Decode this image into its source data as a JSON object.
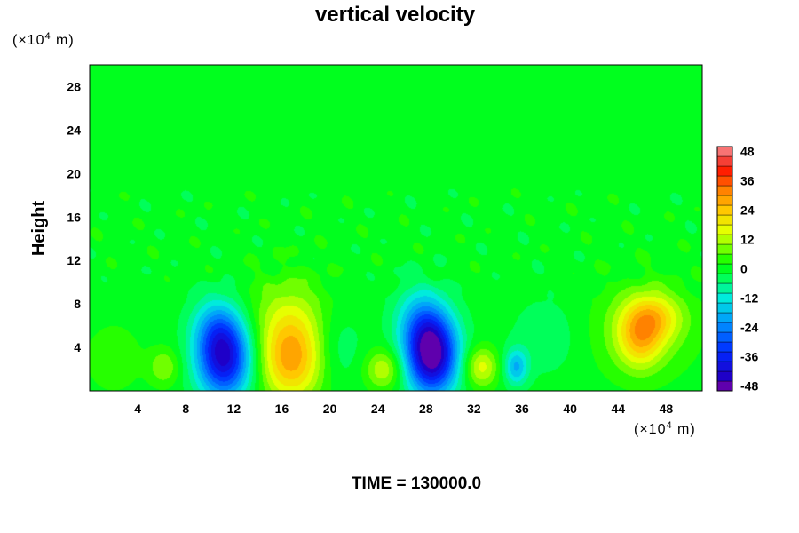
{
  "chart_data": {
    "type": "heatmap",
    "title": "vertical velocity",
    "xlabel": "",
    "ylabel": "Height",
    "x_unit": {
      "prefix": "(×10",
      "exp": "4",
      "suffix": " m)"
    },
    "y_unit": {
      "prefix": "(×10",
      "exp": "4",
      "suffix": " m)"
    },
    "xlim": [
      0,
      51
    ],
    "ylim": [
      0,
      30
    ],
    "x_ticks": [
      4,
      8,
      12,
      16,
      20,
      24,
      28,
      32,
      36,
      40,
      44,
      48
    ],
    "y_ticks": [
      4,
      8,
      12,
      16,
      20,
      24,
      28
    ],
    "colorbar": {
      "range": [
        -50,
        50
      ],
      "ticks": [
        48,
        36,
        24,
        12,
        0,
        -12,
        -24,
        -36,
        -48
      ],
      "levels": 25
    },
    "features": [
      {
        "x": 11.2,
        "y": 3.0,
        "value": -42,
        "sx": 1.6,
        "sy": 2.6
      },
      {
        "x": 10.5,
        "y": 6.0,
        "value": -12,
        "sx": 1.4,
        "sy": 2.0
      },
      {
        "x": 16.8,
        "y": 3.0,
        "value": 28,
        "sx": 1.9,
        "sy": 2.8
      },
      {
        "x": 16.5,
        "y": 7.5,
        "value": 8,
        "sx": 2.5,
        "sy": 2.5
      },
      {
        "x": 28.5,
        "y": 3.3,
        "value": -50,
        "sx": 1.5,
        "sy": 2.6
      },
      {
        "x": 27.5,
        "y": 6.5,
        "value": -14,
        "sx": 1.5,
        "sy": 2.2
      },
      {
        "x": 24.5,
        "y": 2.0,
        "value": 14,
        "sx": 1.1,
        "sy": 1.3
      },
      {
        "x": 32.6,
        "y": 2.2,
        "value": 16,
        "sx": 1.0,
        "sy": 1.3
      },
      {
        "x": 35.5,
        "y": 2.2,
        "value": -18,
        "sx": 0.7,
        "sy": 1.2
      },
      {
        "x": 6.2,
        "y": 2.2,
        "value": 10,
        "sx": 0.9,
        "sy": 1.2
      },
      {
        "x": 46.8,
        "y": 6.8,
        "value": 18,
        "sx": 1.7,
        "sy": 1.6
      },
      {
        "x": 45.8,
        "y": 4.5,
        "value": 16,
        "sx": 1.3,
        "sy": 1.8
      },
      {
        "x": 46.0,
        "y": 5.5,
        "value": 8,
        "sx": 3.0,
        "sy": 3.0
      },
      {
        "x": 20.5,
        "y": 4.0,
        "value": -6,
        "sx": 1.5,
        "sy": 2.5
      },
      {
        "x": 38.0,
        "y": 5.0,
        "value": -5,
        "sx": 2.0,
        "sy": 2.5
      },
      {
        "x": 2.0,
        "y": 3.0,
        "value": 6,
        "sx": 1.5,
        "sy": 2.0
      }
    ]
  },
  "footer": {
    "time_label": "TIME = 130000.0"
  }
}
